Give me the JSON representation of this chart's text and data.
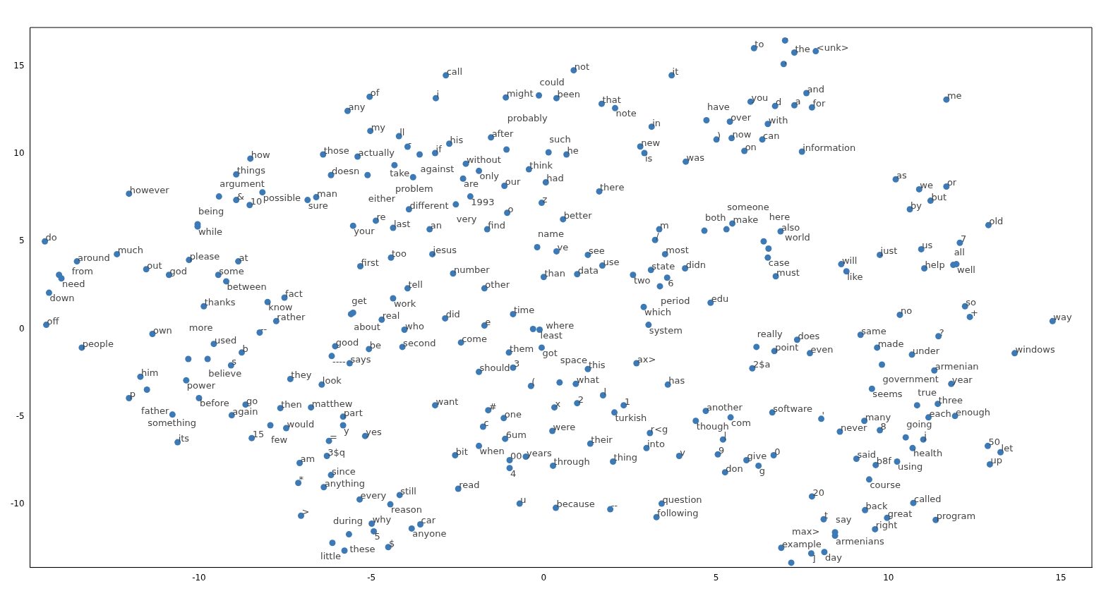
{
  "chart_data": {
    "type": "scatter",
    "color": "#3d7ab5",
    "marker": "circle",
    "xlim": [
      -14.9,
      15.9
    ],
    "ylim": [
      -13.6,
      17.2
    ],
    "xticks": [
      -10,
      -5,
      0,
      5,
      10,
      15
    ],
    "yticks": [
      -10,
      -5,
      0,
      5,
      10,
      15
    ],
    "x": [
      6.1,
      7.0,
      7.27,
      7.89,
      6.96,
      7.62,
      6.0,
      6.71,
      7.27,
      7.78,
      11.68,
      5.4,
      6.5,
      5.45,
      6.34,
      5.82,
      7.49,
      4.72,
      5.01,
      3.71,
      0.87,
      -2.84,
      -3.13,
      -1.1,
      -0.14,
      0.37,
      1.68,
      2.07,
      3.13,
      2.8,
      2.92,
      4.12,
      -1.53,
      -1.08,
      0.14,
      0.66,
      -2.74,
      -4.2,
      -3.95,
      -3.6,
      -3.15,
      -4.33,
      -3.79,
      -2.26,
      -1.88,
      -2.34,
      -0.43,
      0.06,
      -1.14,
      -2.13,
      -2.55,
      -3.91,
      -0.06,
      -1.06,
      0.56,
      1.61,
      -4.37,
      -3.31,
      -1.64,
      -0.19,
      0.37,
      1.28,
      1.7,
      0.97,
      0.0,
      3.35,
      3.23,
      3.52,
      2.59,
      3.11,
      3.58,
      3.37,
      4.1,
      2.9,
      4.84,
      3.04,
      -4.43,
      -3.23,
      -2.63,
      -3.95,
      -1.72,
      -4.37,
      4.66,
      5.3,
      5.47,
      6.87,
      6.38,
      6.52,
      6.5,
      6.73,
      10.21,
      10.89,
      11.68,
      11.22,
      10.62,
      12.9,
      12.07,
      10.95,
      9.75,
      8.63,
      8.78,
      11.04,
      11.88,
      11.97,
      12.22,
      12.36,
      -5.05,
      -5.69,
      -5.03,
      -6.4,
      -5.4,
      -6.17,
      -5.11,
      -8.51,
      -8.92,
      -12.03,
      -9.42,
      -8.92,
      -8.53,
      -8.16,
      -6.85,
      -6.6,
      -10.04,
      -10.04,
      -5.53,
      -4.87,
      -14.47,
      -12.38,
      -13.54,
      -10.29,
      -8.86,
      -11.53,
      -10.87,
      -9.44,
      -9.21,
      -14.06,
      -13.99,
      -14.35,
      -5.32,
      -9.86,
      -8.01,
      -7.52,
      -14.43,
      -11.35,
      -13.4,
      -9.57,
      -10.31,
      -9.75,
      -8.76,
      -9.07,
      -7.76,
      -8.24,
      -11.7,
      -10.37,
      -11.51,
      -12.03,
      -10.0,
      -8.65,
      -10.77,
      -9.05,
      -7.64,
      -6.75,
      -7.93,
      -7.47,
      -10.62,
      -8.47,
      -7.35,
      -6.44,
      -6.05,
      -6.15,
      -5.63,
      -5.07,
      -5.59,
      -5.53,
      -5.82,
      -5.82,
      -5.18,
      -6.23,
      -6.29,
      -7.08,
      -6.17,
      -7.12,
      -6.38,
      -5.34,
      -7.04,
      -4.99,
      -4.93,
      -5.65,
      -6.13,
      -5.78,
      -4.51,
      -4.7,
      -4.04,
      -4.1,
      -2.86,
      -2.4,
      -1.72,
      -0.89,
      -0.31,
      -0.12,
      -1.01,
      -0.06,
      -1.88,
      -0.89,
      -0.37,
      0.46,
      0.93,
      1.28,
      2.69,
      3.6,
      1.72,
      0.97,
      2.32,
      2.05,
      0.31,
      -3.15,
      -1.61,
      -1.16,
      -1.76,
      0.25,
      -1.12,
      -1.88,
      1.35,
      3.08,
      2.98,
      -2.57,
      -0.99,
      -0.52,
      -0.99,
      0.27,
      2.01,
      3.93,
      5.05,
      5.26,
      5.2,
      -2.48,
      -4.18,
      -4.45,
      -3.58,
      -3.83,
      -0.7,
      0.35,
      1.93,
      3.42,
      3.27,
      4.7,
      4.41,
      5.42,
      6.63,
      8.05,
      5.88,
      6.23,
      6.67,
      6.17,
      6.69,
      7.35,
      7.72,
      6.05,
      10.33,
      9.19,
      9.67,
      10.68,
      11.45,
      9.81,
      11.33,
      11.82,
      13.66,
      14.76,
      9.52,
      10.83,
      11.43,
      11.16,
      11.93,
      9.3,
      8.59,
      9.75,
      10.5,
      11.01,
      10.7,
      9.07,
      9.63,
      10.25,
      9.44,
      12.88,
      13.25,
      12.94,
      7.78,
      10.72,
      9.32,
      9.96,
      11.37,
      8.12,
      9.61,
      8.45,
      8.45,
      6.89,
      7.76,
      8.14,
      7.18
    ],
    "values": [
      16.02,
      16.46,
      15.77,
      15.85,
      15.12,
      13.46,
      12.97,
      12.72,
      12.76,
      12.64,
      13.09,
      11.83,
      11.7,
      10.89,
      10.81,
      10.16,
      10.12,
      11.91,
      10.81,
      14.47,
      14.76,
      14.47,
      13.17,
      13.21,
      13.33,
      13.17,
      12.85,
      12.6,
      11.54,
      10.41,
      10.04,
      9.55,
      10.93,
      10.24,
      10.08,
      9.96,
      10.57,
      11.0,
      10.4,
      9.96,
      10.04,
      9.35,
      8.66,
      9.43,
      9.02,
      8.58,
      9.11,
      8.37,
      8.17,
      7.56,
      7.11,
      6.83,
      7.2,
      6.63,
      6.26,
      7.85,
      5.77,
      5.69,
      5.69,
      4.67,
      4.43,
      4.23,
      3.62,
      3.13,
      2.97,
      5.69,
      5.08,
      4.27,
      3.09,
      3.37,
      2.93,
      2.44,
      3.46,
      1.26,
      1.5,
      0.24,
      4.07,
      4.27,
      3.17,
      2.32,
      2.32,
      1.75,
      5.61,
      5.69,
      6.02,
      5.57,
      5.0,
      4.59,
      4.07,
      3.01,
      8.54,
      7.97,
      8.13,
      7.32,
      6.83,
      5.93,
      4.92,
      4.55,
      4.23,
      3.7,
      3.29,
      3.46,
      3.66,
      3.7,
      1.3,
      0.69,
      13.25,
      12.44,
      11.3,
      9.96,
      9.84,
      8.78,
      8.78,
      9.72,
      8.82,
      7.72,
      7.56,
      7.36,
      7.07,
      7.8,
      7.36,
      7.52,
      5.98,
      5.85,
      5.89,
      6.18,
      5.0,
      4.27,
      3.86,
      3.94,
      3.86,
      3.41,
      3.09,
      3.09,
      2.72,
      3.09,
      2.89,
      2.07,
      3.58,
      1.3,
      1.54,
      1.79,
      0.24,
      -0.28,
      -1.06,
      -0.85,
      -1.71,
      -1.71,
      -1.34,
      -2.07,
      0.45,
      -0.2,
      -2.72,
      -2.93,
      -3.46,
      -3.94,
      -3.94,
      -4.31,
      -4.88,
      -4.92,
      -4.51,
      -4.47,
      -5.49,
      -5.65,
      -6.46,
      -6.22,
      -2.85,
      -3.17,
      -0.98,
      -1.54,
      -1.95,
      -1.14,
      0.85,
      0.93,
      -5.0,
      -5.49,
      -6.1,
      -6.38,
      -7.24,
      -7.64,
      -8.33,
      -8.78,
      -9.02,
      -9.72,
      -10.65,
      -11.1,
      -11.54,
      -11.71,
      -12.2,
      -12.64,
      -12.44,
      0.53,
      -0.04,
      -1.02,
      0.61,
      -0.77,
      0.2,
      0.85,
      0.0,
      -0.04,
      -1.34,
      -1.06,
      -2.44,
      -2.2,
      -3.25,
      -3.05,
      -3.13,
      -2.28,
      -1.95,
      -3.17,
      -3.78,
      -4.23,
      -4.35,
      -4.76,
      -4.47,
      -4.35,
      -4.63,
      -5.08,
      -5.57,
      -5.81,
      -6.26,
      -6.67,
      -6.54,
      -5.93,
      -6.79,
      -7.2,
      -7.48,
      -7.28,
      -7.93,
      -7.8,
      -7.56,
      -7.24,
      -7.15,
      -8.17,
      -6.3,
      -9.11,
      -9.47,
      -10.0,
      -11.14,
      -11.38,
      -9.96,
      -10.2,
      -10.28,
      -9.96,
      -10.73,
      -4.67,
      -5.24,
      -5.04,
      -4.76,
      -5.12,
      -7.48,
      -7.8,
      -7.2,
      -1.02,
      -1.26,
      -0.61,
      -1.38,
      -2.24,
      0.81,
      -0.33,
      -1.06,
      -1.46,
      -0.41,
      -2.03,
      -2.36,
      -3.13,
      -1.38,
      0.45,
      -3.41,
      -4.35,
      -4.27,
      -5.04,
      -4.96,
      -5.24,
      -5.85,
      -5.77,
      -6.18,
      -6.3,
      -6.79,
      -7.4,
      -7.76,
      -7.56,
      -8.58,
      -6.67,
      -7.03,
      -7.72,
      -9.55,
      -9.92,
      -10.33,
      -10.77,
      -10.89,
      -10.85,
      -11.42,
      -11.59,
      -11.79,
      -12.48,
      -12.8,
      -12.72,
      -13.33
    ],
    "annotations": [
      {
        "text": "to",
        "x": 6.1,
        "y": 16.02
      },
      {
        "text": ".",
        "x": 7.0,
        "y": 16.46
      },
      {
        "text": "the",
        "x": 7.27,
        "y": 15.77
      },
      {
        "text": "<unk>",
        "x": 7.89,
        "y": 15.85
      },
      {
        "text": ",",
        "x": 6.96,
        "y": 15.12
      },
      {
        "text": "and",
        "x": 7.62,
        "y": 13.46
      },
      {
        "text": "you",
        "x": 6.0,
        "y": 12.97
      },
      {
        "text": "d",
        "x": 6.71,
        "y": 12.72
      },
      {
        "text": "a",
        "x": 7.27,
        "y": 12.76
      },
      {
        "text": "for",
        "x": 7.78,
        "y": 12.64
      },
      {
        "text": "me",
        "x": 11.68,
        "y": 13.09
      },
      {
        "text": "over",
        "x": 5.4,
        "y": 11.83
      },
      {
        "text": "with",
        "x": 6.5,
        "y": 11.7
      },
      {
        "text": "now",
        "x": 5.45,
        "y": 10.89
      },
      {
        "text": "can",
        "x": 6.34,
        "y": 10.81
      },
      {
        "text": "on",
        "x": 5.82,
        "y": 10.16
      },
      {
        "text": "information",
        "x": 7.49,
        "y": 10.12
      },
      {
        "text": "have",
        "x": 4.72,
        "y": 11.91
      },
      {
        "text": ")",
        "x": 5.01,
        "y": 10.81
      },
      {
        "text": "it",
        "x": 3.71,
        "y": 14.47
      },
      {
        "text": "not",
        "x": 0.87,
        "y": 14.76
      },
      {
        "text": "call",
        "x": -2.84,
        "y": 14.47
      },
      {
        "text": "i",
        "x": -3.13,
        "y": 13.17
      },
      {
        "text": "might",
        "x": -1.1,
        "y": 13.21
      },
      {
        "text": "could",
        "x": -0.14,
        "y": 13.33
      },
      {
        "text": "been",
        "x": 0.37,
        "y": 13.17
      },
      {
        "text": "that",
        "x": 1.68,
        "y": 12.85
      },
      {
        "text": "note",
        "x": 2.07,
        "y": 12.6
      },
      {
        "text": "in",
        "x": 3.13,
        "y": 11.54
      },
      {
        "text": "new",
        "x": 2.8,
        "y": 10.41
      },
      {
        "text": "is",
        "x": 2.92,
        "y": 10.04
      },
      {
        "text": "was",
        "x": 4.12,
        "y": 9.55
      },
      {
        "text": "after",
        "x": -1.53,
        "y": 10.93
      },
      {
        "text": "probably",
        "x": -1.08,
        "y": 10.24
      },
      {
        "text": "such",
        "x": 0.14,
        "y": 10.08
      },
      {
        "text": "he",
        "x": 0.66,
        "y": 9.96
      },
      {
        "text": "his",
        "x": -2.74,
        "y": 10.57
      },
      {
        "text": "ll",
        "x": -4.2,
        "y": 11.0
      },
      {
        "text": "-",
        "x": -3.95,
        "y": 10.4
      },
      {
        "text": "against",
        "x": -3.6,
        "y": 9.96
      },
      {
        "text": "if",
        "x": -3.15,
        "y": 10.04
      },
      {
        "text": "problem",
        "x": -4.33,
        "y": 9.35
      },
      {
        "text": "take",
        "x": -3.79,
        "y": 8.66
      },
      {
        "text": "without",
        "x": -2.26,
        "y": 9.43
      },
      {
        "text": "only",
        "x": -1.88,
        "y": 9.02
      },
      {
        "text": "are",
        "x": -2.34,
        "y": 8.58
      },
      {
        "text": "think",
        "x": -0.43,
        "y": 9.11
      },
      {
        "text": "had",
        "x": 0.06,
        "y": 8.37
      },
      {
        "text": "our",
        "x": -1.14,
        "y": 8.17
      },
      {
        "text": "1993",
        "x": -2.13,
        "y": 7.56
      },
      {
        "text": "very",
        "x": -2.55,
        "y": 7.11
      },
      {
        "text": "different",
        "x": -3.91,
        "y": 6.83
      },
      {
        "text": "z",
        "x": -0.06,
        "y": 7.2
      },
      {
        "text": "o",
        "x": -1.06,
        "y": 6.63
      },
      {
        "text": "better",
        "x": 0.56,
        "y": 6.26
      },
      {
        "text": "there",
        "x": 1.61,
        "y": 7.85
      },
      {
        "text": "last",
        "x": -4.37,
        "y": 5.77
      },
      {
        "text": "an",
        "x": -3.31,
        "y": 5.69
      },
      {
        "text": "find",
        "x": -1.64,
        "y": 5.69
      },
      {
        "text": "name",
        "x": -0.19,
        "y": 4.67
      },
      {
        "text": "ve",
        "x": 0.37,
        "y": 4.43
      },
      {
        "text": "see",
        "x": 1.28,
        "y": 4.23
      },
      {
        "text": "use",
        "x": 1.7,
        "y": 3.62
      },
      {
        "text": "data",
        "x": 0.97,
        "y": 3.13
      },
      {
        "text": "than",
        "x": 0.0,
        "y": 2.97
      },
      {
        "text": "m",
        "x": 3.35,
        "y": 5.69
      },
      {
        "text": "/",
        "x": 3.23,
        "y": 5.08
      },
      {
        "text": "most",
        "x": 3.52,
        "y": 4.27
      },
      {
        "text": "two",
        "x": 2.59,
        "y": 3.09
      },
      {
        "text": "state",
        "x": 3.11,
        "y": 3.37
      },
      {
        "text": "6",
        "x": 3.58,
        "y": 2.93
      },
      {
        "text": "period",
        "x": 3.37,
        "y": 2.44
      },
      {
        "text": "didn",
        "x": 4.1,
        "y": 3.46
      },
      {
        "text": "which",
        "x": 2.9,
        "y": 1.26
      },
      {
        "text": "edu",
        "x": 4.84,
        "y": 1.5
      },
      {
        "text": "system",
        "x": 3.04,
        "y": 0.24
      },
      {
        "text": "too",
        "x": -4.43,
        "y": 4.07
      },
      {
        "text": "jesus",
        "x": -3.23,
        "y": 4.27
      },
      {
        "text": "number",
        "x": -2.63,
        "y": 3.17
      },
      {
        "text": "tell",
        "x": -3.95,
        "y": 2.32
      },
      {
        "text": "other",
        "x": -1.72,
        "y": 2.32
      },
      {
        "text": "work",
        "x": -4.37,
        "y": 1.75
      },
      {
        "text": "both",
        "x": 4.66,
        "y": 5.61
      },
      {
        "text": "someone",
        "x": 5.3,
        "y": 5.69
      },
      {
        "text": "make",
        "x": 5.47,
        "y": 6.02
      },
      {
        "text": "also",
        "x": 6.87,
        "y": 5.57
      },
      {
        "text": "world",
        "x": 6.38,
        "y": 5.0
      },
      {
        "text": "here",
        "x": 6.52,
        "y": 4.59
      },
      {
        "text": "case",
        "x": 6.5,
        "y": 4.07
      },
      {
        "text": "must",
        "x": 6.73,
        "y": 3.01
      },
      {
        "text": "as",
        "x": 10.21,
        "y": 8.54
      },
      {
        "text": "we",
        "x": 10.89,
        "y": 7.97
      },
      {
        "text": "or",
        "x": 11.68,
        "y": 8.13
      },
      {
        "text": "but",
        "x": 11.22,
        "y": 7.32
      },
      {
        "text": "by",
        "x": 10.62,
        "y": 6.83
      },
      {
        "text": "old",
        "x": 12.9,
        "y": 5.93
      },
      {
        "text": "7",
        "x": 12.07,
        "y": 4.92
      },
      {
        "text": "us",
        "x": 10.95,
        "y": 4.55
      },
      {
        "text": "just",
        "x": 9.75,
        "y": 4.23
      },
      {
        "text": "will",
        "x": 8.63,
        "y": 3.7
      },
      {
        "text": "like",
        "x": 8.78,
        "y": 3.29
      },
      {
        "text": "help",
        "x": 11.04,
        "y": 3.46
      },
      {
        "text": "all",
        "x": 11.88,
        "y": 3.66
      },
      {
        "text": "well",
        "x": 11.97,
        "y": 3.7
      },
      {
        "text": "so",
        "x": 12.22,
        "y": 1.3
      },
      {
        "text": "+",
        "x": 12.36,
        "y": 0.69
      },
      {
        "text": "of",
        "x": -5.05,
        "y": 13.25
      },
      {
        "text": "any",
        "x": -5.69,
        "y": 12.44
      },
      {
        "text": "my",
        "x": -5.03,
        "y": 11.3
      },
      {
        "text": "those",
        "x": -6.4,
        "y": 9.96
      },
      {
        "text": "actually",
        "x": -5.4,
        "y": 9.84
      },
      {
        "text": "doesn",
        "x": -6.17,
        "y": 8.78
      },
      {
        "text": "either",
        "x": -5.11,
        "y": 8.78
      },
      {
        "text": "how",
        "x": -8.51,
        "y": 9.72
      },
      {
        "text": "things",
        "x": -8.92,
        "y": 8.82
      },
      {
        "text": "however",
        "x": -12.03,
        "y": 7.72
      },
      {
        "text": "argument",
        "x": -9.42,
        "y": 7.56
      },
      {
        "text": "&",
        "x": -8.92,
        "y": 7.36
      },
      {
        "text": "10",
        "x": -8.53,
        "y": 7.07
      },
      {
        "text": "possible",
        "x": -8.16,
        "y": 7.8
      },
      {
        "text": "sure",
        "x": -6.85,
        "y": 7.36
      },
      {
        "text": "man",
        "x": -6.6,
        "y": 7.52
      },
      {
        "text": "being",
        "x": -10.04,
        "y": 5.98
      },
      {
        "text": "while",
        "x": -10.04,
        "y": 5.85
      },
      {
        "text": "your",
        "x": -5.53,
        "y": 5.89
      },
      {
        "text": "re",
        "x": -4.87,
        "y": 6.18
      },
      {
        "text": "do",
        "x": -14.47,
        "y": 5.0
      },
      {
        "text": "much",
        "x": -12.38,
        "y": 4.27
      },
      {
        "text": "around",
        "x": -13.54,
        "y": 3.86
      },
      {
        "text": "please",
        "x": -10.29,
        "y": 3.94
      },
      {
        "text": "at",
        "x": -8.86,
        "y": 3.86
      },
      {
        "text": "out",
        "x": -11.53,
        "y": 3.41
      },
      {
        "text": "god",
        "x": -10.87,
        "y": 3.09
      },
      {
        "text": "some",
        "x": -9.44,
        "y": 3.09
      },
      {
        "text": "between",
        "x": -9.21,
        "y": 2.72
      },
      {
        "text": "from",
        "x": -14.06,
        "y": 3.09
      },
      {
        "text": "need",
        "x": -13.99,
        "y": 2.89
      },
      {
        "text": "down",
        "x": -14.35,
        "y": 2.07
      },
      {
        "text": "first",
        "x": -5.32,
        "y": 3.58
      },
      {
        "text": "thanks",
        "x": -9.86,
        "y": 1.3
      },
      {
        "text": "know",
        "x": -8.01,
        "y": 1.54
      },
      {
        "text": "fact",
        "x": -7.52,
        "y": 1.79
      },
      {
        "text": "off",
        "x": -14.43,
        "y": 0.24
      },
      {
        "text": "own",
        "x": -11.35,
        "y": -0.28
      },
      {
        "text": "people",
        "x": -13.4,
        "y": -1.06
      },
      {
        "text": "used",
        "x": -9.57,
        "y": -0.85
      },
      {
        "text": "more",
        "x": -10.31,
        "y": -1.71
      },
      {
        "text": "believe",
        "x": -9.75,
        "y": -1.71
      },
      {
        "text": "b",
        "x": -8.76,
        "y": -1.34
      },
      {
        "text": "s",
        "x": -9.07,
        "y": -2.07
      },
      {
        "text": "rather",
        "x": -7.76,
        "y": 0.45
      },
      {
        "text": "--",
        "x": -8.24,
        "y": -0.2
      },
      {
        "text": "him",
        "x": -11.7,
        "y": -2.72
      },
      {
        "text": "power",
        "x": -10.37,
        "y": -2.93
      },
      {
        "text": "something",
        "x": -11.51,
        "y": -3.46
      },
      {
        "text": "p",
        "x": -12.03,
        "y": -3.94
      },
      {
        "text": "before",
        "x": -10.0,
        "y": -3.94
      },
      {
        "text": "go",
        "x": -8.65,
        "y": -4.31
      },
      {
        "text": "father",
        "x": -10.77,
        "y": -4.88
      },
      {
        "text": "again",
        "x": -9.05,
        "y": -4.92
      },
      {
        "text": "then",
        "x": -7.64,
        "y": -4.51
      },
      {
        "text": "matthew",
        "x": -6.75,
        "y": -4.47
      },
      {
        "text": "few",
        "x": -7.93,
        "y": -5.49
      },
      {
        "text": "would",
        "x": -7.47,
        "y": -5.65
      },
      {
        "text": "its",
        "x": -10.62,
        "y": -6.46
      },
      {
        "text": "15",
        "x": -8.47,
        "y": -6.22
      },
      {
        "text": "they",
        "x": -7.35,
        "y": -2.85
      },
      {
        "text": "look",
        "x": -6.44,
        "y": -3.17
      },
      {
        "text": "good",
        "x": -6.05,
        "y": -0.98
      },
      {
        "text": "----",
        "x": -6.15,
        "y": -1.54
      },
      {
        "text": "says",
        "x": -5.63,
        "y": -1.95
      },
      {
        "text": "be",
        "x": -5.07,
        "y": -1.14
      },
      {
        "text": "get",
        "x": -5.59,
        "y": 0.85
      },
      {
        "text": "about",
        "x": -5.53,
        "y": 0.93
      },
      {
        "text": "part",
        "x": -5.82,
        "y": -5.0
      },
      {
        "text": "y",
        "x": -5.82,
        "y": -5.49
      },
      {
        "text": "yes",
        "x": -5.18,
        "y": -6.1
      },
      {
        "text": "=",
        "x": -6.23,
        "y": -6.38
      },
      {
        "text": "3$q",
        "x": -6.29,
        "y": -7.24
      },
      {
        "text": "am",
        "x": -7.08,
        "y": -7.64
      },
      {
        "text": "since",
        "x": -6.17,
        "y": -8.33
      },
      {
        "text": "*",
        "x": -7.12,
        "y": -8.78
      },
      {
        "text": "anything",
        "x": -6.38,
        "y": -9.02
      },
      {
        "text": "every",
        "x": -5.34,
        "y": -9.72
      },
      {
        "text": ">",
        "x": -7.04,
        "y": -10.65
      },
      {
        "text": "why",
        "x": -4.99,
        "y": -11.1
      },
      {
        "text": "5",
        "x": -4.93,
        "y": -11.54
      },
      {
        "text": "these",
        "x": -5.65,
        "y": -11.71
      },
      {
        "text": "during",
        "x": -6.13,
        "y": -12.2
      },
      {
        "text": "little",
        "x": -5.78,
        "y": -12.64
      },
      {
        "text": "$",
        "x": -4.51,
        "y": -12.44
      },
      {
        "text": "real",
        "x": -4.7,
        "y": 0.53
      },
      {
        "text": "who",
        "x": -4.04,
        "y": -0.04
      },
      {
        "text": "second",
        "x": -4.1,
        "y": -1.02
      },
      {
        "text": "did",
        "x": -2.86,
        "y": 0.61
      },
      {
        "text": "come",
        "x": -2.4,
        "y": -0.77
      },
      {
        "text": "e",
        "x": -1.72,
        "y": 0.2
      },
      {
        "text": "time",
        "x": -0.89,
        "y": 0.85
      },
      {
        "text": "where",
        "x": -0.31,
        "y": 0.0
      },
      {
        "text": "least",
        "x": -0.12,
        "y": -0.04
      },
      {
        "text": "them",
        "x": -1.01,
        "y": -1.34
      },
      {
        "text": "got",
        "x": -0.06,
        "y": -1.06
      },
      {
        "text": "should",
        "x": -1.88,
        "y": -2.44
      },
      {
        "text": "3",
        "x": -0.89,
        "y": -2.2
      },
      {
        "text": "(",
        "x": -0.37,
        "y": -3.25
      },
      {
        "text": "space",
        "x": 0.46,
        "y": -3.05
      },
      {
        "text": "what",
        "x": 0.93,
        "y": -3.13
      },
      {
        "text": "this",
        "x": 1.28,
        "y": -2.28
      },
      {
        "text": "ax>",
        "x": 2.69,
        "y": -1.95
      },
      {
        "text": "has",
        "x": 3.6,
        "y": -3.17
      },
      {
        "text": "l",
        "x": 1.72,
        "y": -3.78
      },
      {
        "text": "2",
        "x": 0.97,
        "y": -4.23
      },
      {
        "text": "1",
        "x": 2.32,
        "y": -4.35
      },
      {
        "text": "turkish",
        "x": 2.05,
        "y": -4.76
      },
      {
        "text": "x",
        "x": 0.31,
        "y": -4.47
      },
      {
        "text": "want",
        "x": -3.15,
        "y": -4.35
      },
      {
        "text": "#",
        "x": -1.61,
        "y": -4.63
      },
      {
        "text": "one",
        "x": -1.16,
        "y": -5.08
      },
      {
        "text": "c",
        "x": -1.76,
        "y": -5.57
      },
      {
        "text": "were",
        "x": 0.25,
        "y": -5.81
      },
      {
        "text": "6um",
        "x": -1.12,
        "y": -6.26
      },
      {
        "text": "when",
        "x": -1.88,
        "y": -6.67
      },
      {
        "text": "their",
        "x": 1.35,
        "y": -6.54
      },
      {
        "text": "r<g",
        "x": 3.08,
        "y": -5.93
      },
      {
        "text": "into",
        "x": 2.98,
        "y": -6.79
      },
      {
        "text": "bit",
        "x": -2.57,
        "y": -7.2
      },
      {
        "text": "00",
        "x": -0.99,
        "y": -7.48
      },
      {
        "text": "years",
        "x": -0.52,
        "y": -7.28
      },
      {
        "text": "4",
        "x": -0.99,
        "y": -7.93
      },
      {
        "text": "through",
        "x": 0.27,
        "y": -7.8
      },
      {
        "text": "thing",
        "x": 2.01,
        "y": -7.56
      },
      {
        "text": "v",
        "x": 3.93,
        "y": -7.24
      },
      {
        "text": "9",
        "x": 5.05,
        "y": -7.15
      },
      {
        "text": "don",
        "x": 5.26,
        "y": -8.17
      },
      {
        "text": "|",
        "x": 5.2,
        "y": -6.3
      },
      {
        "text": "read",
        "x": -2.48,
        "y": -9.11
      },
      {
        "text": "still",
        "x": -4.18,
        "y": -9.47
      },
      {
        "text": "reason",
        "x": -4.45,
        "y": -10.0
      },
      {
        "text": "car",
        "x": -3.58,
        "y": -11.14
      },
      {
        "text": "anyone",
        "x": -3.83,
        "y": -11.38
      },
      {
        "text": "u",
        "x": -0.7,
        "y": -9.96
      },
      {
        "text": "because",
        "x": 0.35,
        "y": -10.2
      },
      {
        "text": "--",
        "x": 1.93,
        "y": -10.28
      },
      {
        "text": "question",
        "x": 3.42,
        "y": -9.96
      },
      {
        "text": "following",
        "x": 3.27,
        "y": -10.73
      },
      {
        "text": "another",
        "x": 4.7,
        "y": -4.67
      },
      {
        "text": "though",
        "x": 4.41,
        "y": -5.24
      },
      {
        "text": "com",
        "x": 5.42,
        "y": -5.04
      },
      {
        "text": "software",
        "x": 6.63,
        "y": -4.76
      },
      {
        "text": "'",
        "x": 8.05,
        "y": -5.12
      },
      {
        "text": "give",
        "x": 5.88,
        "y": -7.48
      },
      {
        "text": "g",
        "x": 6.23,
        "y": -7.8
      },
      {
        "text": "0",
        "x": 6.67,
        "y": -7.2
      },
      {
        "text": "really",
        "x": 6.17,
        "y": -1.02
      },
      {
        "text": "point",
        "x": 6.69,
        "y": -1.26
      },
      {
        "text": "does",
        "x": 7.35,
        "y": -0.61
      },
      {
        "text": "even",
        "x": 7.72,
        "y": -1.38
      },
      {
        "text": "2$a",
        "x": 6.05,
        "y": -2.24
      },
      {
        "text": "no",
        "x": 10.33,
        "y": 0.81
      },
      {
        "text": "same",
        "x": 9.19,
        "y": -0.33
      },
      {
        "text": "made",
        "x": 9.67,
        "y": -1.06
      },
      {
        "text": "under",
        "x": 10.68,
        "y": -1.46
      },
      {
        "text": "?",
        "x": 11.45,
        "y": -0.41
      },
      {
        "text": "government",
        "x": 9.81,
        "y": -2.03
      },
      {
        "text": "armenian",
        "x": 11.33,
        "y": -2.36
      },
      {
        "text": "year",
        "x": 11.82,
        "y": -3.13
      },
      {
        "text": "windows",
        "x": 13.66,
        "y": -1.38
      },
      {
        "text": "way",
        "x": 14.76,
        "y": 0.45
      },
      {
        "text": "seems",
        "x": 9.52,
        "y": -3.41
      },
      {
        "text": "true",
        "x": 10.83,
        "y": -4.35
      },
      {
        "text": "three",
        "x": 11.43,
        "y": -4.27
      },
      {
        "text": "each",
        "x": 11.16,
        "y": -5.04
      },
      {
        "text": "enough",
        "x": 11.93,
        "y": -4.96
      },
      {
        "text": "many",
        "x": 9.3,
        "y": -5.24
      },
      {
        "text": "never",
        "x": 8.59,
        "y": -5.85
      },
      {
        "text": "8",
        "x": 9.75,
        "y": -5.77
      },
      {
        "text": "going",
        "x": 10.5,
        "y": -6.18
      },
      {
        "text": "j",
        "x": 11.01,
        "y": -6.3
      },
      {
        "text": "health",
        "x": 10.7,
        "y": -6.79
      },
      {
        "text": "said",
        "x": 9.07,
        "y": -7.4
      },
      {
        "text": "b8f",
        "x": 9.63,
        "y": -7.76
      },
      {
        "text": "using",
        "x": 10.25,
        "y": -7.56
      },
      {
        "text": "course",
        "x": 9.44,
        "y": -8.58
      },
      {
        "text": "50",
        "x": 12.88,
        "y": -6.67
      },
      {
        "text": "let",
        "x": 13.25,
        "y": -7.03
      },
      {
        "text": "up",
        "x": 12.94,
        "y": -7.72
      },
      {
        "text": "20",
        "x": 7.78,
        "y": -9.55
      },
      {
        "text": "called",
        "x": 10.72,
        "y": -9.92
      },
      {
        "text": "back",
        "x": 9.32,
        "y": -10.33
      },
      {
        "text": "great",
        "x": 9.96,
        "y": -10.77
      },
      {
        "text": "program",
        "x": 11.37,
        "y": -10.89
      },
      {
        "text": "t",
        "x": 8.12,
        "y": -10.85
      },
      {
        "text": "right",
        "x": 9.61,
        "y": -11.42
      },
      {
        "text": "say",
        "x": 8.45,
        "y": -11.59
      },
      {
        "text": "armenians",
        "x": 8.45,
        "y": -11.79
      },
      {
        "text": "example",
        "x": 6.89,
        "y": -12.48
      },
      {
        "text": "]",
        "x": 7.76,
        "y": -12.8
      },
      {
        "text": "day",
        "x": 8.14,
        "y": -12.72
      },
      {
        "text": "max>",
        "x": 7.18,
        "y": -13.33
      }
    ]
  }
}
